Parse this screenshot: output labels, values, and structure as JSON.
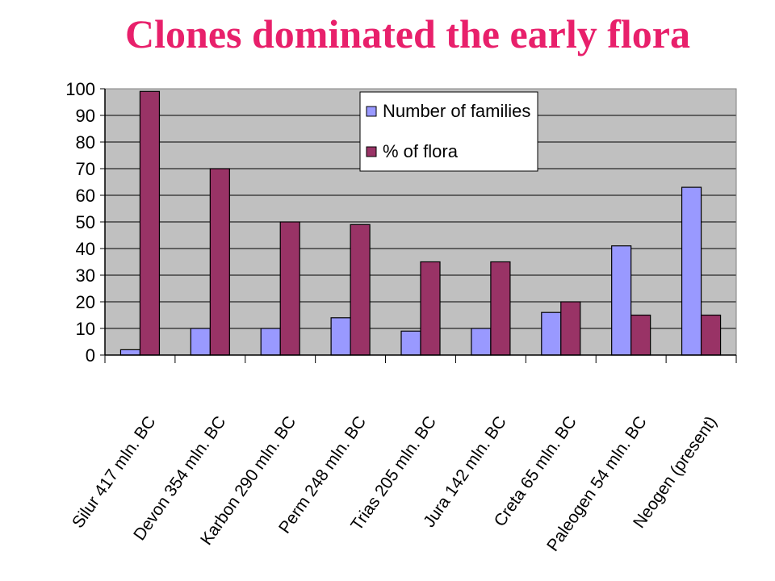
{
  "title": "Clones dominated the early flora",
  "chart_data": {
    "type": "bar",
    "categories": [
      "Silur 417 mln. BC",
      "Devon 354 mln. BC",
      "Karbon 290 mln. BC",
      "Perm 248 mln. BC",
      "Trias 205 mln. BC",
      "Jura 142 mln. BC",
      "Creta 65 mln. BC",
      "Paleogen 54 mln. BC",
      "Neogen (present)"
    ],
    "series": [
      {
        "name": "Number of families",
        "color": "#9999ff",
        "values": [
          2,
          10,
          10,
          14,
          9,
          10,
          16,
          41,
          63
        ]
      },
      {
        "name": "% of flora",
        "color": "#993366",
        "values": [
          99,
          70,
          50,
          49,
          35,
          35,
          20,
          15,
          15
        ]
      }
    ],
    "ylim": [
      0,
      100
    ],
    "yticks": [
      0,
      10,
      20,
      30,
      40,
      50,
      60,
      70,
      80,
      90,
      100
    ],
    "grid": true,
    "plot_background": "#c0c0c0",
    "legend_position": "top-center"
  }
}
